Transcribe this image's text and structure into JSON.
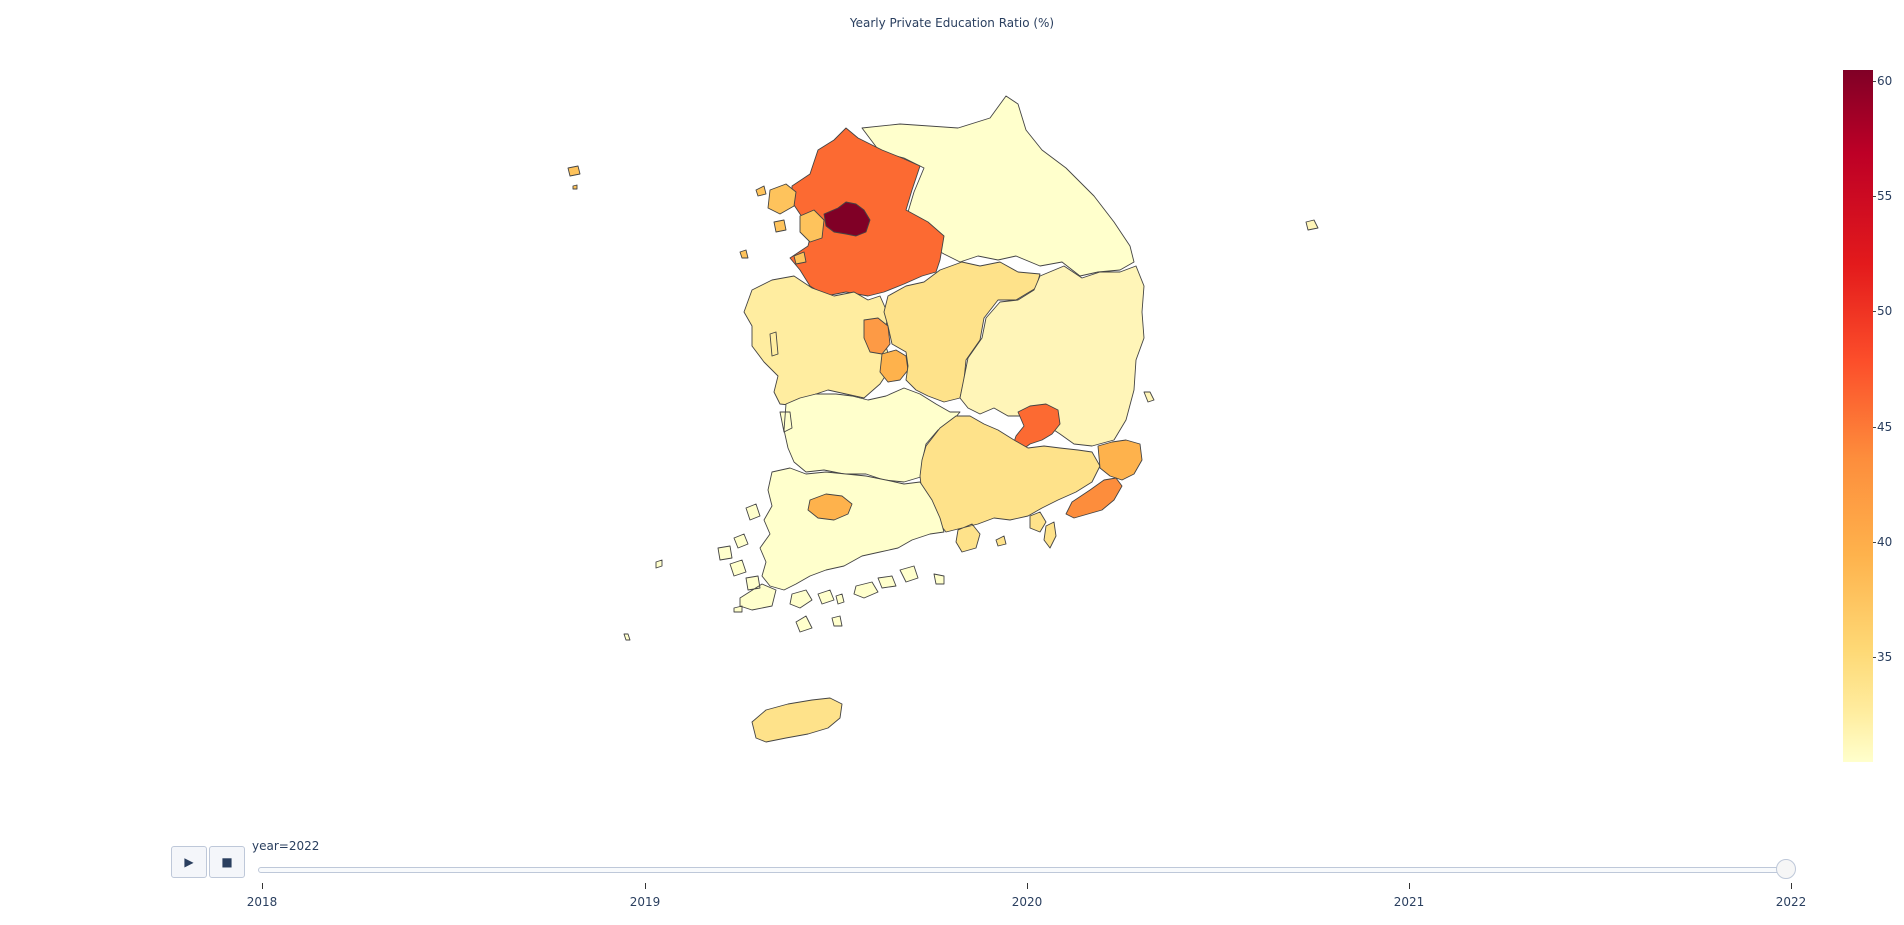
{
  "title": "Yearly Private Education Ratio (%)",
  "colorbar": {
    "ticks": [
      "60",
      "55",
      "50",
      "45",
      "40",
      "35"
    ],
    "colors": [
      "#800026",
      "#bd0026",
      "#e31a1c",
      "#fc4e2a",
      "#fd8d3c",
      "#feb24c",
      "#fed976",
      "#ffeda0",
      "#ffffcc"
    ],
    "range": [
      30,
      60
    ]
  },
  "animation": {
    "play_icon": "play-icon",
    "stop_icon": "stop-icon",
    "slider_label": "year=2022",
    "years": [
      "2018",
      "2019",
      "2020",
      "2021",
      "2022"
    ],
    "current_year": "2022"
  },
  "regions": [
    {
      "name_icon": "seoul",
      "color": "#800026"
    },
    {
      "name_icon": "gyeonggi",
      "color": "#fc6a32"
    },
    {
      "name_icon": "incheon",
      "color": "#fec35c"
    },
    {
      "name_icon": "gangwon",
      "color": "#ffffcc"
    },
    {
      "name_icon": "chungnam",
      "color": "#ffeda0"
    },
    {
      "name_icon": "chungbuk",
      "color": "#fee28a"
    },
    {
      "name_icon": "sejong",
      "color": "#fd9a45"
    },
    {
      "name_icon": "daejeon",
      "color": "#feb24c"
    },
    {
      "name_icon": "gyeongbuk",
      "color": "#fff5b8"
    },
    {
      "name_icon": "daegu",
      "color": "#fc6a32"
    },
    {
      "name_icon": "jeonbuk",
      "color": "#ffffcc"
    },
    {
      "name_icon": "gwangju",
      "color": "#feb24c"
    },
    {
      "name_icon": "jeonnam",
      "color": "#ffffcc"
    },
    {
      "name_icon": "gyeongnam",
      "color": "#fee28a"
    },
    {
      "name_icon": "ulsan",
      "color": "#feb24c"
    },
    {
      "name_icon": "busan",
      "color": "#fd8d3c"
    },
    {
      "name_icon": "jeju",
      "color": "#fee28a"
    }
  ]
}
